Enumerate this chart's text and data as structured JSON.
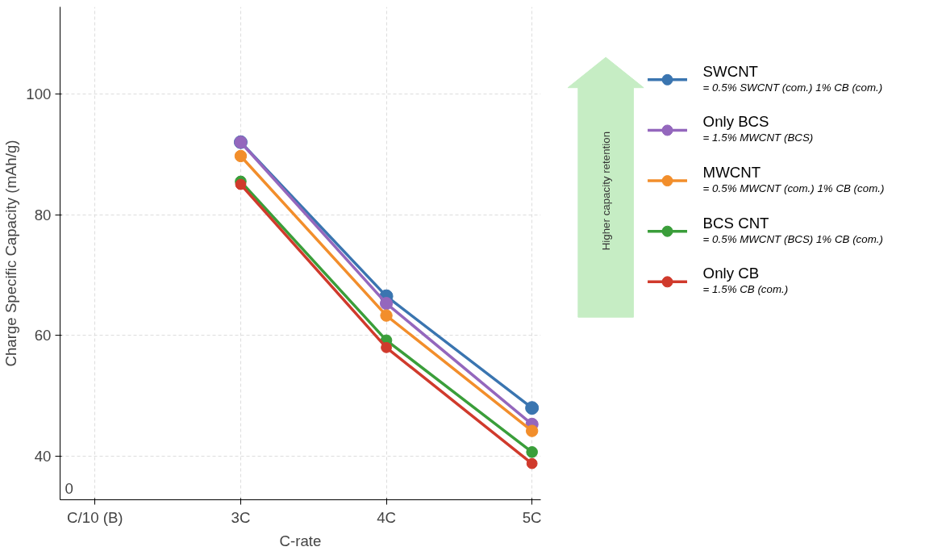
{
  "chart_data": {
    "type": "line",
    "xlabel": "C-rate",
    "ylabel": "Charge Specific Capacity (mAh/g)",
    "categories": [
      "C/10 (B)",
      "3C",
      "4C",
      "5C"
    ],
    "ylim": [
      32.8,
      114.4
    ],
    "yticks": [
      40,
      60,
      80,
      100
    ],
    "grid": true,
    "legend": "right",
    "marker": "circle",
    "line_style": "solid",
    "series": [
      {
        "name": "SWCNT",
        "color": "#3a75b0",
        "values": [
          null,
          92,
          66.5,
          48
        ]
      },
      {
        "name": "Only BCS",
        "color": "#9467bd",
        "values": [
          null,
          92,
          65.3,
          45.3
        ]
      },
      {
        "name": "MWCNT",
        "color": "#f28e2b",
        "values": [
          null,
          89.7,
          63.3,
          44.2
        ]
      },
      {
        "name": "BCS CNT",
        "color": "#3a9e3a",
        "values": [
          null,
          85.5,
          59.2,
          40.7
        ]
      },
      {
        "name": "Only CB",
        "color": "#d03a2c",
        "values": [
          null,
          85,
          58,
          38.8
        ]
      }
    ],
    "annotations": [
      "= 0.5% SWCNT (com.) 1% CB (com.)",
      "= 1.5% MWCNT (BCS)",
      "= 0.5% MWCNT (com.) 1% CB (com.)",
      "= 0.5% MWCNT (BCS) 1% CB (com.)",
      "= 1.5% CB (com.)",
      "Higher capacity retention",
      "0"
    ]
  }
}
